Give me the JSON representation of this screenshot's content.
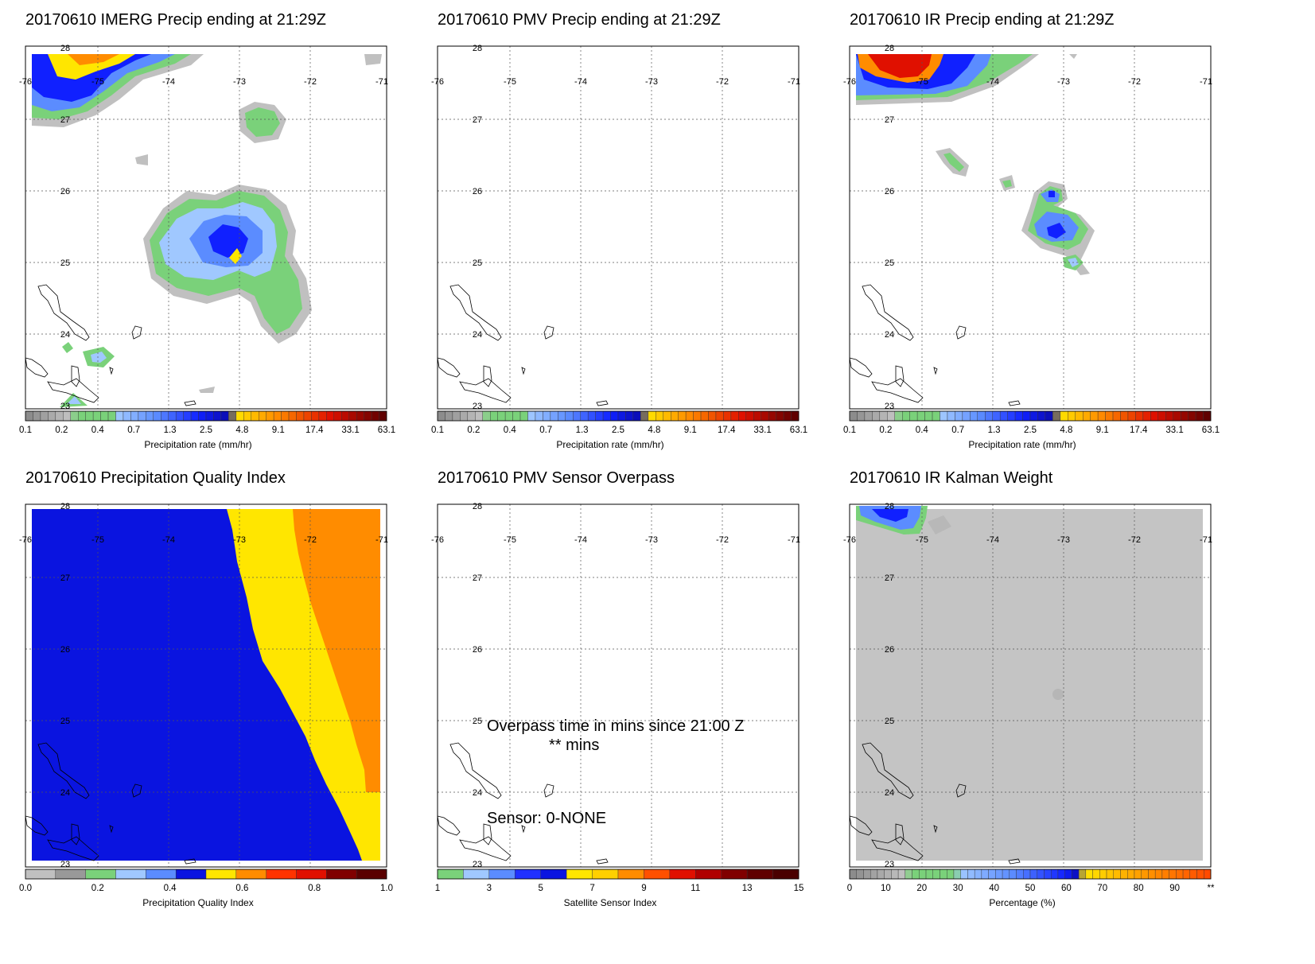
{
  "colors": {
    "gray_dark": "#999999",
    "gray_light": "#c0c0c0",
    "green": "#7ad17a",
    "lightblue": "#a0c8ff",
    "blue_mid": "#5b8cff",
    "blue_dark": "#1020ff",
    "yellow": "#ffe600",
    "orange": "#ff8c00",
    "red": "#e01000",
    "darkred": "#800000",
    "pqi_blue": "#0a14e0",
    "pqi_yellow": "#ffe600",
    "pqi_orange": "#ff8c00",
    "weight_gray": "#c4c4c4"
  },
  "map": {
    "lon_labels": [
      "-76",
      "-75",
      "-74",
      "-73",
      "-72",
      "-71"
    ],
    "lat_labels": [
      "28",
      "27",
      "26",
      "25",
      "24",
      "23"
    ]
  },
  "colorbars": {
    "precip": {
      "labels": [
        "0.1",
        "0.2",
        "0.4",
        "0.7",
        "1.3",
        "2.5",
        "4.8",
        "9.1",
        "17.4",
        "33.1",
        "63.1"
      ],
      "caption": "Precipitation rate (mm/hr)"
    },
    "pqi": {
      "labels": [
        "0.0",
        "0.2",
        "0.4",
        "0.6",
        "0.8",
        "1.0"
      ],
      "caption": "Precipitation Quality Index"
    },
    "sensor": {
      "labels": [
        "1",
        "3",
        "5",
        "7",
        "9",
        "11",
        "13",
        "15"
      ],
      "caption": "Satellite Sensor Index"
    },
    "percent": {
      "labels": [
        "0",
        "10",
        "20",
        "30",
        "40",
        "50",
        "60",
        "70",
        "80",
        "90",
        "**"
      ],
      "caption": "Percentage (%)"
    }
  },
  "panels": [
    {
      "id": "imerg",
      "title": "20170610 IMERG Precip ending at 21:29Z",
      "colorbar": "precip"
    },
    {
      "id": "pmv",
      "title": "20170610 PMV Precip ending at 21:29Z",
      "colorbar": "precip"
    },
    {
      "id": "ir",
      "title": "20170610 IR Precip ending at 21:29Z",
      "colorbar": "precip"
    },
    {
      "id": "pqi",
      "title": "20170610 Precipitation Quality Index",
      "colorbar": "pqi"
    },
    {
      "id": "overpass",
      "title": "20170610 PMV Sensor Overpass",
      "colorbar": "sensor",
      "overpass_text": "Overpass time in mins since 21:00 Z",
      "overpass_value": "** mins",
      "sensor_text": "Sensor:   0-NONE"
    },
    {
      "id": "kalman",
      "title": "20170610 IR Kalman Weight",
      "colorbar": "percent"
    }
  ]
}
